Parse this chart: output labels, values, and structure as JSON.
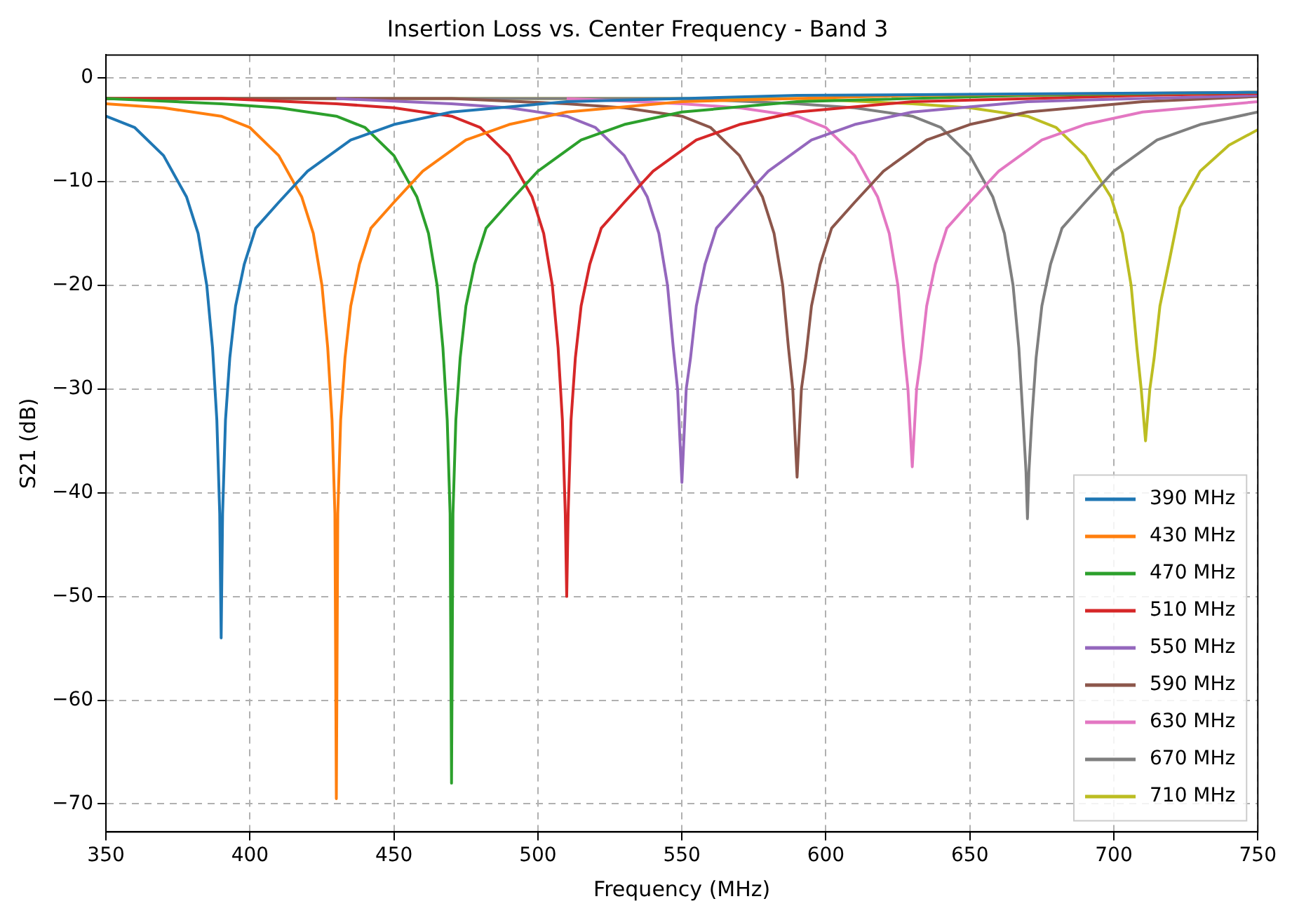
{
  "chart_data": {
    "type": "line",
    "title": "Insertion Loss vs. Center Frequency - Band 3",
    "xlabel": "Frequency (MHz)",
    "ylabel": "S21 (dB)",
    "xlim": [
      350,
      750
    ],
    "xticks": [
      350,
      400,
      450,
      500,
      550,
      600,
      650,
      700,
      750
    ],
    "ylim": [
      -72.7,
      2.2
    ],
    "yticks": [
      {
        "value": -70,
        "label": "−70"
      },
      {
        "value": -60,
        "label": "−60"
      },
      {
        "value": -50,
        "label": "−50"
      },
      {
        "value": -40,
        "label": "−40"
      },
      {
        "value": -30,
        "label": "−30"
      },
      {
        "value": -20,
        "label": "−20"
      },
      {
        "value": -10,
        "label": "−10"
      },
      0
    ],
    "grid": true,
    "legend": "bottom right",
    "line_style": "solid",
    "series": [
      {
        "name": "390 MHz",
        "color": "#1f77b4",
        "x": [
          350,
          360,
          370,
          378,
          382,
          385,
          387,
          388.5,
          389.5,
          390,
          390.5,
          391.5,
          393,
          395,
          398,
          402,
          410,
          420,
          435,
          450,
          470,
          510,
          590,
          750
        ],
        "values": [
          -3.7,
          -4.8,
          -7.5,
          -11.5,
          -15,
          -20,
          -26,
          -33,
          -42,
          -54,
          -42,
          -33,
          -27,
          -22,
          -18,
          -14.5,
          -12,
          -9,
          -6,
          -4.5,
          -3.3,
          -2.3,
          -1.7,
          -1.4
        ]
      },
      {
        "name": "430 MHz",
        "color": "#ff7f0e",
        "x": [
          350,
          370,
          390,
          400,
          410,
          418,
          422,
          425,
          427,
          428.5,
          429.5,
          430,
          430.5,
          431.5,
          433,
          435,
          438,
          442,
          450,
          460,
          475,
          490,
          510,
          550,
          630,
          750
        ],
        "values": [
          -2.5,
          -2.9,
          -3.7,
          -4.8,
          -7.5,
          -11.5,
          -15,
          -20,
          -26,
          -33,
          -42,
          -69.5,
          -42,
          -33,
          -27,
          -22,
          -18,
          -14.5,
          -12,
          -9,
          -6,
          -4.5,
          -3.3,
          -2.3,
          -1.7,
          -1.4
        ]
      },
      {
        "name": "470 MHz",
        "color": "#2ca02c",
        "x": [
          350,
          390,
          410,
          430,
          440,
          450,
          458,
          462,
          465,
          467,
          468.5,
          469.5,
          470,
          470.5,
          471.5,
          473,
          475,
          478,
          482,
          490,
          500,
          515,
          530,
          550,
          590,
          670,
          750
        ],
        "values": [
          -2.0,
          -2.5,
          -2.9,
          -3.7,
          -4.8,
          -7.5,
          -11.5,
          -15,
          -20,
          -26,
          -33,
          -42,
          -68,
          -42,
          -33,
          -27,
          -22,
          -18,
          -14.5,
          -12,
          -9,
          -6,
          -4.5,
          -3.3,
          -2.3,
          -1.7,
          -1.4
        ]
      },
      {
        "name": "510 MHz",
        "color": "#d62728",
        "x": [
          350,
          390,
          430,
          450,
          470,
          480,
          490,
          498,
          502,
          505,
          507,
          508.5,
          509.5,
          510,
          510.5,
          511.5,
          513,
          515,
          518,
          522,
          530,
          540,
          555,
          570,
          590,
          630,
          710,
          750
        ],
        "values": [
          -2.0,
          -2.0,
          -2.5,
          -2.9,
          -3.7,
          -4.8,
          -7.5,
          -11.5,
          -15,
          -20,
          -26,
          -33,
          -42,
          -50,
          -42,
          -33,
          -27,
          -22,
          -18,
          -14.5,
          -12,
          -9,
          -6,
          -4.5,
          -3.3,
          -2.3,
          -1.7,
          -1.5
        ]
      },
      {
        "name": "550 MHz",
        "color": "#9467bd",
        "x": [
          430,
          470,
          490,
          510,
          520,
          530,
          538,
          542,
          545,
          547,
          548.5,
          550,
          551.5,
          553,
          555,
          558,
          562,
          570,
          580,
          595,
          610,
          630,
          670,
          750
        ],
        "values": [
          -2.0,
          -2.5,
          -2.9,
          -3.7,
          -4.8,
          -7.5,
          -11.5,
          -15,
          -20,
          -26,
          -30,
          -39,
          -30,
          -27,
          -22,
          -18,
          -14.5,
          -12,
          -9,
          -6,
          -4.5,
          -3.3,
          -2.3,
          -1.7
        ]
      },
      {
        "name": "590 MHz",
        "color": "#8c564b",
        "x": [
          350,
          470,
          510,
          530,
          550,
          560,
          570,
          578,
          582,
          585,
          587,
          588.5,
          590,
          591.5,
          593,
          595,
          598,
          602,
          610,
          620,
          635,
          650,
          670,
          710,
          750
        ],
        "values": [
          -2.0,
          -2.0,
          -2.5,
          -2.9,
          -3.7,
          -4.8,
          -7.5,
          -11.5,
          -15,
          -20,
          -26,
          -30,
          -38.5,
          -30,
          -27,
          -22,
          -18,
          -14.5,
          -12,
          -9,
          -6,
          -4.5,
          -3.3,
          -2.3,
          -1.8
        ]
      },
      {
        "name": "630 MHz",
        "color": "#e377c2",
        "x": [
          510,
          550,
          570,
          590,
          600,
          610,
          618,
          622,
          625,
          627,
          628.5,
          630,
          631.5,
          633,
          635,
          638,
          642,
          650,
          660,
          675,
          690,
          710,
          750
        ],
        "values": [
          -2.0,
          -2.5,
          -2.9,
          -3.7,
          -4.8,
          -7.5,
          -11.5,
          -15,
          -20,
          -26,
          -30,
          -37.5,
          -30,
          -27,
          -22,
          -18,
          -14.5,
          -12,
          -9,
          -6,
          -4.5,
          -3.3,
          -2.3
        ]
      },
      {
        "name": "670 MHz",
        "color": "#7f7f7f",
        "x": [
          350,
          550,
          590,
          610,
          630,
          640,
          650,
          658,
          662,
          665,
          667,
          668.5,
          669.5,
          670,
          670.5,
          671.5,
          673,
          675,
          678,
          682,
          690,
          700,
          715,
          730,
          750
        ],
        "values": [
          -2.0,
          -2.0,
          -2.5,
          -2.9,
          -3.7,
          -4.8,
          -7.5,
          -11.5,
          -15,
          -20,
          -26,
          -33,
          -38,
          -42.5,
          -38,
          -33,
          -27,
          -22,
          -18,
          -14.5,
          -12,
          -9,
          -6,
          -4.5,
          -3.3
        ]
      },
      {
        "name": "710 MHz",
        "color": "#bcbd22",
        "x": [
          350,
          590,
          630,
          650,
          670,
          680,
          690,
          699,
          703,
          706,
          708,
          709.5,
          711,
          712.5,
          714,
          716,
          719,
          723,
          730,
          740,
          750
        ],
        "values": [
          -2.0,
          -2.0,
          -2.5,
          -2.9,
          -3.7,
          -4.8,
          -7.5,
          -11.5,
          -15,
          -20,
          -26,
          -30,
          -35,
          -30,
          -27,
          -22,
          -18,
          -12.5,
          -9,
          -6.5,
          -5
        ]
      }
    ]
  }
}
